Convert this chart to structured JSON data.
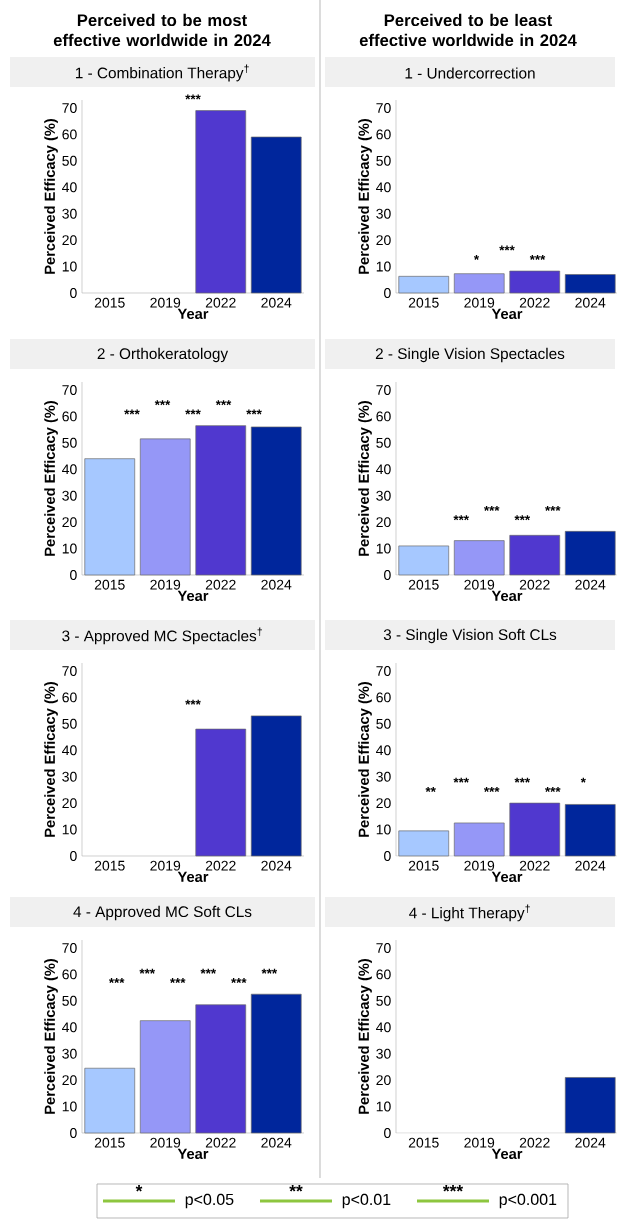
{
  "chart_data": [
    {
      "type": "other",
      "annotations": [
        "Perceived to be most effective worldwide in 2024",
        "Perceived to be least effective worldwide in 2024",
        "*",
        "p<0.05",
        "**",
        "p<0.01",
        "***",
        "p<0.001"
      ]
    },
    {
      "type": "bar",
      "title": "1 - Combination Therapy$^{†}$",
      "xlabel": "Year",
      "ylabel": "Perceived Efficacy (%)",
      "categories": [
        "2015",
        "2019",
        "2022",
        "2024"
      ],
      "values": [
        null,
        null,
        69,
        59
      ],
      "colors": [
        "#a6c8ff",
        "#9597f7",
        "#5038cf",
        "#00269c"
      ],
      "ylim": [
        0,
        73
      ],
      "yticks": [
        0,
        10,
        20,
        30,
        40,
        50,
        60,
        70
      ],
      "annotations": [
        "***"
      ]
    },
    {
      "type": "bar",
      "title": "1 - Undercorrection",
      "xlabel": "Year",
      "ylabel": "Perceived Efficacy (%)",
      "categories": [
        "2015",
        "2019",
        "2022",
        "2024"
      ],
      "values": [
        6.3,
        7.3,
        8.3,
        7
      ],
      "colors": [
        "#a6c8ff",
        "#9597f7",
        "#5038cf",
        "#00269c"
      ],
      "ylim": [
        0,
        73
      ],
      "yticks": [
        0,
        10,
        20,
        30,
        40,
        50,
        60,
        70
      ],
      "annotations": [
        "*",
        "***",
        "***"
      ]
    },
    {
      "type": "bar",
      "title": "2 - Orthokeratology",
      "xlabel": "Year",
      "ylabel": "Perceived Efficacy (%)",
      "categories": [
        "2015",
        "2019",
        "2022",
        "2024"
      ],
      "values": [
        44,
        51.5,
        56.5,
        56
      ],
      "colors": [
        "#a6c8ff",
        "#9597f7",
        "#5038cf",
        "#00269c"
      ],
      "ylim": [
        0,
        73
      ],
      "yticks": [
        0,
        10,
        20,
        30,
        40,
        50,
        60,
        70
      ],
      "annotations": [
        "***",
        "***",
        "***",
        "***",
        "***"
      ]
    },
    {
      "type": "bar",
      "title": "2 - Single Vision Spectacles",
      "xlabel": "Year",
      "ylabel": "Perceived Efficacy (%)",
      "categories": [
        "2015",
        "2019",
        "2022",
        "2024"
      ],
      "values": [
        11,
        13,
        15,
        16.5
      ],
      "colors": [
        "#a6c8ff",
        "#9597f7",
        "#5038cf",
        "#00269c"
      ],
      "ylim": [
        0,
        73
      ],
      "yticks": [
        0,
        10,
        20,
        30,
        40,
        50,
        60,
        70
      ],
      "annotations": [
        "***",
        "***",
        "***",
        "***"
      ]
    },
    {
      "type": "bar",
      "title": "3 - Approved MC Spectacles$^{†}$",
      "xlabel": "Year",
      "ylabel": "Perceived Efficacy (%)",
      "categories": [
        "2015",
        "2019",
        "2022",
        "2024"
      ],
      "values": [
        null,
        null,
        48,
        53
      ],
      "colors": [
        "#a6c8ff",
        "#9597f7",
        "#5038cf",
        "#00269c"
      ],
      "ylim": [
        0,
        73
      ],
      "yticks": [
        0,
        10,
        20,
        30,
        40,
        50,
        60,
        70
      ],
      "annotations": [
        "***"
      ]
    },
    {
      "type": "bar",
      "title": "3 - Single Vision Soft CLs",
      "xlabel": "Year",
      "ylabel": "Perceived Efficacy (%)",
      "categories": [
        "2015",
        "2019",
        "2022",
        "2024"
      ],
      "values": [
        9.5,
        12.5,
        20,
        19.5
      ],
      "colors": [
        "#a6c8ff",
        "#9597f7",
        "#5038cf",
        "#00269c"
      ],
      "ylim": [
        0,
        73
      ],
      "yticks": [
        0,
        10,
        20,
        30,
        40,
        50,
        60,
        70
      ],
      "annotations": [
        "**",
        "***",
        "***",
        "***",
        "***",
        "*"
      ]
    },
    {
      "type": "bar",
      "title": "4 - Approved MC Soft CLs",
      "xlabel": "Year",
      "ylabel": "Perceived Efficacy (%)",
      "categories": [
        "2015",
        "2019",
        "2022",
        "2024"
      ],
      "values": [
        24.5,
        42.5,
        48.5,
        52.5
      ],
      "colors": [
        "#a6c8ff",
        "#9597f7",
        "#5038cf",
        "#00269c"
      ],
      "ylim": [
        0,
        73
      ],
      "yticks": [
        0,
        10,
        20,
        30,
        40,
        50,
        60,
        70
      ],
      "annotations": [
        "***",
        "***",
        "***",
        "***",
        "***",
        "***"
      ]
    },
    {
      "type": "bar",
      "title": "4 - Light Therapy$^{†}$",
      "xlabel": "Year",
      "ylabel": "Perceived Efficacy (%)",
      "categories": [
        "2015",
        "2019",
        "2022",
        "2024"
      ],
      "values": [
        null,
        null,
        null,
        21
      ],
      "colors": [
        "#a6c8ff",
        "#9597f7",
        "#5038cf",
        "#00269c"
      ],
      "ylim": [
        0,
        73
      ],
      "yticks": [
        0,
        10,
        20,
        30,
        40,
        50,
        60,
        70
      ]
    }
  ]
}
